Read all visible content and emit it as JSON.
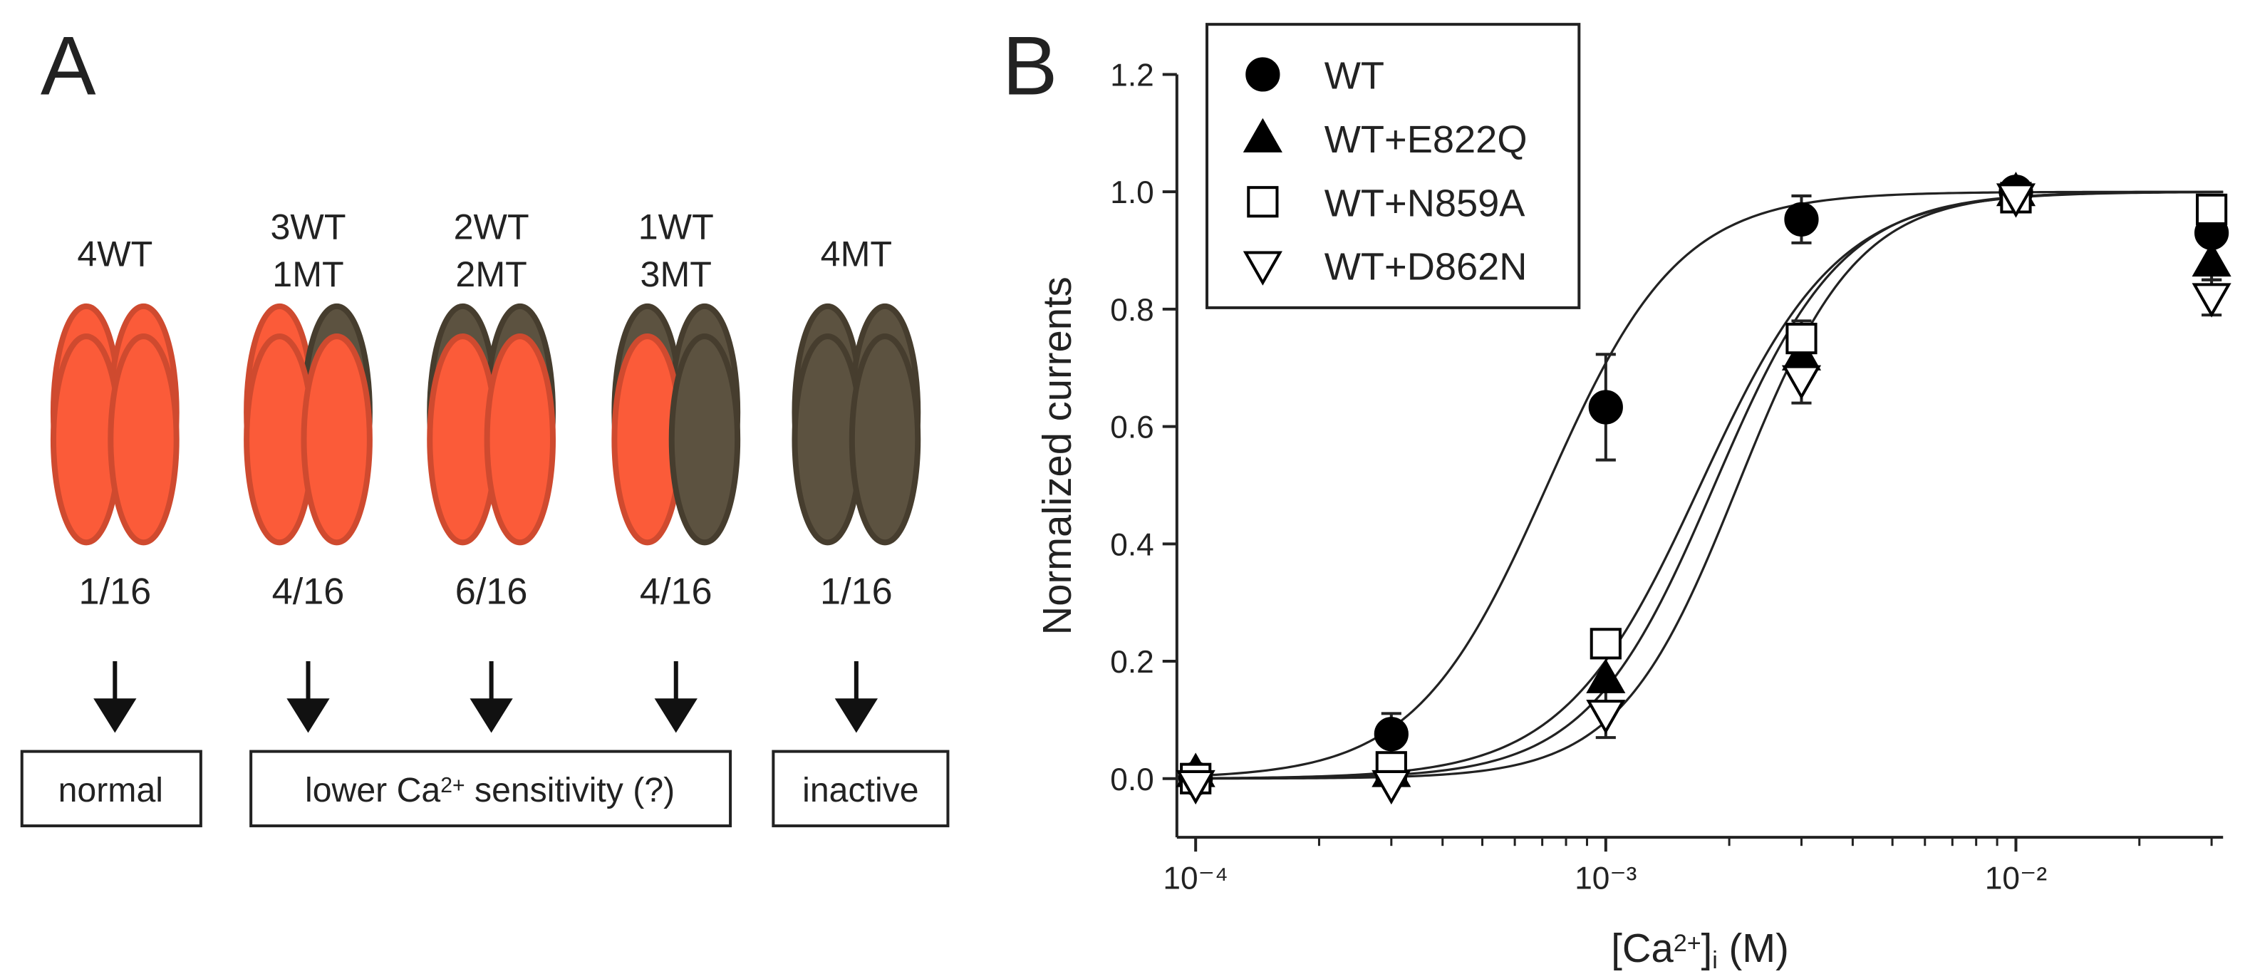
{
  "panel_a": {
    "label": "A",
    "columns": [
      {
        "genotype": [
          "4WT"
        ],
        "fraction": "1/16"
      },
      {
        "genotype": [
          "3WT",
          "1MT"
        ],
        "fraction": "4/16"
      },
      {
        "genotype": [
          "2WT",
          "2MT"
        ],
        "fraction": "6/16"
      },
      {
        "genotype": [
          "1WT",
          "3MT"
        ],
        "fraction": "4/16"
      },
      {
        "genotype": [
          "4MT"
        ],
        "fraction": "1/16"
      }
    ],
    "outcomes": [
      [
        "normal"
      ],
      [
        "lower Ca",
        "2+",
        " sensitivity (?)"
      ],
      [
        "inactive"
      ]
    ]
  },
  "chart_data": {
    "type": "scatter",
    "label": "B",
    "y_label": "Normalized currents",
    "x_label": [
      "[Ca",
      "2+",
      "]",
      "i",
      " (M)"
    ],
    "x_log": true,
    "xlim": [
      9e-05,
      0.032
    ],
    "xticks": [
      {
        "value": 0.0001,
        "label": "10⁻⁴"
      },
      {
        "value": 0.001,
        "label": "10⁻³"
      },
      {
        "value": 0.01,
        "label": "10⁻²"
      }
    ],
    "xminorticks": [
      0.0002,
      0.0003,
      0.0004,
      0.0005,
      0.0006,
      0.0007,
      0.0008,
      0.0009,
      0.002,
      0.003,
      0.004,
      0.005,
      0.006,
      0.007,
      0.008,
      0.009,
      0.02,
      0.03
    ],
    "ylim": [
      -0.1,
      1.2
    ],
    "yticks": [
      {
        "value": 0,
        "label": "0.0"
      },
      0.2,
      0.4,
      0.6,
      0.8,
      {
        "value": 1,
        "label": "1.0"
      },
      1.2
    ],
    "legend": "top-left",
    "x": [
      0.0001,
      0.0003,
      0.001,
      0.003,
      0.01,
      0.03
    ],
    "series": [
      {
        "name": "WT",
        "marker": "circle",
        "filled": true,
        "color": "#000000",
        "values": [
          0.0,
          0.076,
          0.633,
          0.953,
          1.0,
          0.93
        ],
        "errors": [
          null,
          0.035,
          0.09,
          0.04,
          null,
          null
        ],
        "fit": {
          "ec50": 0.00072,
          "hill": 2.7
        }
      },
      {
        "name": "WT+E822Q",
        "marker": "triangle-up",
        "filled": true,
        "color": "#000000",
        "values": [
          0.01,
          0.01,
          0.17,
          0.72,
          1.0,
          0.88
        ],
        "errors": [
          null,
          null,
          null,
          null,
          null,
          0.03
        ],
        "fit": {
          "ec50": 0.00184,
          "hill": 2.8
        }
      },
      {
        "name": "WT+N859A",
        "marker": "square",
        "filled": false,
        "color": "#000000",
        "values": [
          0.0,
          0.02,
          0.23,
          0.75,
          0.99,
          0.97
        ],
        "errors": [
          null,
          null,
          null,
          0.03,
          null,
          null
        ],
        "fit": {
          "ec50": 0.0017,
          "hill": 2.6
        }
      },
      {
        "name": "WT+D862N",
        "marker": "triangle-down",
        "filled": false,
        "color": "#000000",
        "values": [
          -0.01,
          -0.01,
          0.11,
          0.68,
          0.99,
          0.82
        ],
        "errors": [
          null,
          null,
          0.04,
          0.04,
          null,
          0.03
        ],
        "fit": {
          "ec50": 0.0021,
          "hill": 3.0
        }
      }
    ]
  }
}
